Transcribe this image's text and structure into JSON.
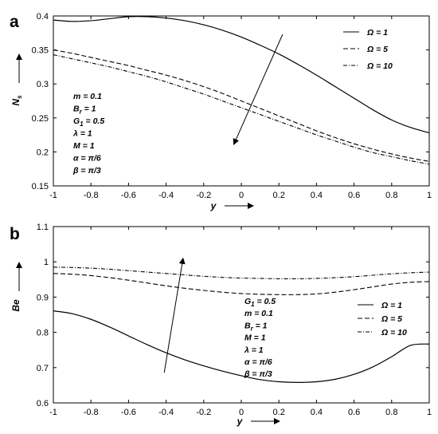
{
  "chart_data": [
    {
      "type": "line",
      "panel_label": "a",
      "xlabel": "y",
      "ylabel": "N",
      "ylabel_sub": "s",
      "xlim": [
        -1,
        1
      ],
      "ylim": [
        0.15,
        0.4
      ],
      "xticks": [
        "-1",
        "-0.8",
        "-0.6",
        "-0.4",
        "-0.2",
        "0",
        "0.2",
        "0.4",
        "0.6",
        "0.8",
        "1"
      ],
      "yticks": [
        "0.15",
        "0.2",
        "0.25",
        "0.3",
        "0.35",
        "0.4"
      ],
      "grid": false,
      "legend_position": "top-right",
      "series": [
        {
          "name": "Ω = 1",
          "style": "solid",
          "x": [
            -1,
            -0.9,
            -0.8,
            -0.7,
            -0.6,
            -0.5,
            -0.4,
            -0.3,
            -0.2,
            -0.1,
            0,
            0.1,
            0.2,
            0.3,
            0.4,
            0.5,
            0.6,
            0.7,
            0.8,
            0.9,
            1
          ],
          "y": [
            0.394,
            0.392,
            0.393,
            0.396,
            0.399,
            0.399,
            0.397,
            0.393,
            0.387,
            0.379,
            0.369,
            0.357,
            0.344,
            0.329,
            0.313,
            0.296,
            0.279,
            0.262,
            0.247,
            0.236,
            0.228
          ]
        },
        {
          "name": "Ω = 5",
          "style": "dashed",
          "x": [
            -1,
            -0.9,
            -0.8,
            -0.7,
            -0.6,
            -0.5,
            -0.4,
            -0.3,
            -0.2,
            -0.1,
            0,
            0.1,
            0.2,
            0.3,
            0.4,
            0.5,
            0.6,
            0.7,
            0.8,
            0.9,
            1
          ],
          "y": [
            0.35,
            0.345,
            0.339,
            0.333,
            0.327,
            0.32,
            0.313,
            0.305,
            0.296,
            0.286,
            0.275,
            0.264,
            0.253,
            0.242,
            0.231,
            0.221,
            0.212,
            0.204,
            0.197,
            0.191,
            0.186
          ]
        },
        {
          "name": "Ω = 10",
          "style": "dashdot",
          "x": [
            -1,
            -0.9,
            -0.8,
            -0.7,
            -0.6,
            -0.5,
            -0.4,
            -0.3,
            -0.2,
            -0.1,
            0,
            0.1,
            0.2,
            0.3,
            0.4,
            0.5,
            0.6,
            0.7,
            0.8,
            0.9,
            1
          ],
          "y": [
            0.343,
            0.337,
            0.331,
            0.325,
            0.318,
            0.311,
            0.303,
            0.294,
            0.285,
            0.275,
            0.265,
            0.255,
            0.245,
            0.235,
            0.225,
            0.216,
            0.207,
            0.199,
            0.193,
            0.187,
            0.182
          ]
        }
      ],
      "arrow": {
        "from": [
          0.22,
          0.373
        ],
        "to": [
          -0.04,
          0.211
        ]
      },
      "annotations": [
        {
          "base": "m = 0.1"
        },
        {
          "base": "B",
          "sub": "r",
          "tail": " = 1"
        },
        {
          "base": "G",
          "sub": "1",
          "tail": " = 0.5"
        },
        {
          "base": "λ = 1"
        },
        {
          "base": "M = 1"
        },
        {
          "base": "α = π/6"
        },
        {
          "base": "β = π/3"
        }
      ]
    },
    {
      "type": "line",
      "panel_label": "b",
      "xlabel": "y",
      "ylabel": "Be",
      "xlim": [
        -1,
        1
      ],
      "ylim": [
        0.6,
        1.1
      ],
      "xticks": [
        "-1",
        "-0.8",
        "-0.6",
        "-0.4",
        "-0.2",
        "0",
        "0.2",
        "0.4",
        "0.6",
        "0.8",
        "1"
      ],
      "yticks": [
        "0.6",
        "0.7",
        "0.8",
        "0.9",
        "1",
        "1.1"
      ],
      "grid": false,
      "legend_position": "right",
      "series": [
        {
          "name": "Ω = 1",
          "style": "solid",
          "x": [
            -1,
            -0.9,
            -0.8,
            -0.7,
            -0.6,
            -0.5,
            -0.4,
            -0.3,
            -0.2,
            -0.1,
            0,
            0.1,
            0.2,
            0.3,
            0.4,
            0.5,
            0.6,
            0.7,
            0.8,
            0.9,
            1
          ],
          "y": [
            0.861,
            0.853,
            0.837,
            0.815,
            0.79,
            0.765,
            0.742,
            0.722,
            0.705,
            0.69,
            0.677,
            0.666,
            0.66,
            0.658,
            0.66,
            0.667,
            0.681,
            0.702,
            0.731,
            0.763,
            0.767
          ]
        },
        {
          "name": "Ω = 5",
          "style": "dashed",
          "x": [
            -1,
            -0.9,
            -0.8,
            -0.7,
            -0.6,
            -0.5,
            -0.4,
            -0.3,
            -0.2,
            -0.1,
            0,
            0.1,
            0.2,
            0.3,
            0.4,
            0.5,
            0.6,
            0.7,
            0.8,
            0.9,
            1
          ],
          "y": [
            0.967,
            0.965,
            0.961,
            0.955,
            0.948,
            0.94,
            0.932,
            0.925,
            0.919,
            0.914,
            0.91,
            0.908,
            0.907,
            0.907,
            0.909,
            0.914,
            0.921,
            0.929,
            0.937,
            0.942,
            0.944
          ]
        },
        {
          "name": "Ω = 10",
          "style": "dashdot",
          "x": [
            -1,
            -0.9,
            -0.8,
            -0.7,
            -0.6,
            -0.5,
            -0.4,
            -0.3,
            -0.2,
            -0.1,
            0,
            0.1,
            0.2,
            0.3,
            0.4,
            0.5,
            0.6,
            0.7,
            0.8,
            0.9,
            1
          ],
          "y": [
            0.985,
            0.984,
            0.982,
            0.979,
            0.975,
            0.971,
            0.967,
            0.963,
            0.959,
            0.956,
            0.954,
            0.953,
            0.952,
            0.952,
            0.953,
            0.955,
            0.958,
            0.962,
            0.966,
            0.969,
            0.971
          ]
        }
      ],
      "arrow": {
        "from": [
          -0.41,
          0.686
        ],
        "to": [
          -0.31,
          1.01
        ]
      },
      "annotations": [
        {
          "base": "G",
          "sub": "1",
          "tail": " = 0.5"
        },
        {
          "base": "m = 0.1"
        },
        {
          "base": "B",
          "sub": "r",
          "tail": " = 1"
        },
        {
          "base": "M = 1"
        },
        {
          "base": "λ = 1"
        },
        {
          "base": "α = π/6"
        },
        {
          "base": "β = π/3"
        }
      ]
    }
  ]
}
